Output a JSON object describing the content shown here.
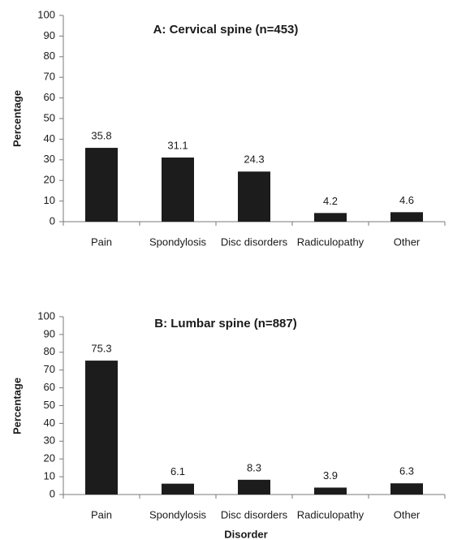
{
  "chart_data": [
    {
      "type": "bar",
      "title": "A: Cervical spine (n=453)",
      "ylabel": "Percentage",
      "xlabel": "",
      "ylim": [
        0,
        100
      ],
      "yticks": [
        0,
        10,
        20,
        30,
        40,
        50,
        60,
        70,
        80,
        90,
        100
      ],
      "categories": [
        "Pain",
        "Spondylosis",
        "Disc disorders",
        "Radiculopathy",
        "Other"
      ],
      "values": [
        35.8,
        31.1,
        24.3,
        4.2,
        4.6
      ],
      "data_labels": [
        "35.8",
        "31.1",
        "24.3",
        "4.2",
        "4.6"
      ],
      "grid": false,
      "bar_color": "#1c1c1c"
    },
    {
      "type": "bar",
      "title": "B: Lumbar spine (n=887)",
      "ylabel": "Percentage",
      "xlabel": "Disorder",
      "ylim": [
        0,
        100
      ],
      "yticks": [
        0,
        10,
        20,
        30,
        40,
        50,
        60,
        70,
        80,
        90,
        100
      ],
      "categories": [
        "Pain",
        "Spondylosis",
        "Disc disorders",
        "Radiculopathy",
        "Other"
      ],
      "values": [
        75.3,
        6.1,
        8.3,
        3.9,
        6.3
      ],
      "data_labels": [
        "75.3",
        "6.1",
        "8.3",
        "3.9",
        "6.3"
      ],
      "grid": false,
      "bar_color": "#1c1c1c"
    }
  ]
}
